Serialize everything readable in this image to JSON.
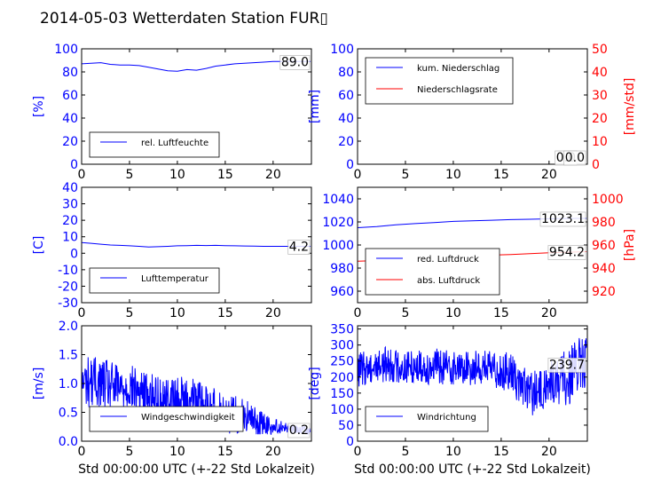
{
  "title": "2014-05-03 Wetterdaten Station FUR▯",
  "colors": {
    "primary": "#0000ff",
    "secondary": "#ff0000",
    "axis": "#000000",
    "frame": "#000000"
  },
  "chart_data": [
    {
      "id": "humidity",
      "type": "line",
      "ylabel": "[%]",
      "ylim": [
        0,
        100
      ],
      "yticks": [
        0,
        20,
        40,
        60,
        80,
        100
      ],
      "xlim": [
        0,
        24
      ],
      "xticks": [
        0,
        5,
        10,
        15,
        20
      ],
      "legend_position": "lower-left",
      "series": [
        {
          "name": "rel. Luftfeuchte",
          "color": "#0000ff",
          "x": [
            0,
            1,
            2,
            3,
            4,
            5,
            6,
            7,
            8,
            9,
            10,
            11,
            12,
            13,
            14,
            15,
            16,
            17,
            18,
            19,
            20,
            21,
            22,
            23,
            23.9
          ],
          "y": [
            87,
            87.5,
            88,
            86.5,
            86,
            86,
            85.5,
            84,
            82.5,
            81,
            80.5,
            82,
            81.5,
            83,
            85,
            86,
            87,
            87.5,
            88,
            88.5,
            89,
            89,
            89,
            89,
            89
          ]
        }
      ],
      "value_labels": [
        {
          "text": "89.0",
          "y": 89.0
        }
      ]
    },
    {
      "id": "precip",
      "type": "line",
      "ylabel": "[mm]",
      "ylabel_right": "[mm/std]",
      "ylim": [
        0,
        100
      ],
      "yticks": [
        0,
        20,
        40,
        60,
        80,
        100
      ],
      "ylim_right": [
        0,
        50
      ],
      "yticks_right": [
        0,
        10,
        20,
        30,
        40,
        50
      ],
      "xlim": [
        0,
        24
      ],
      "xticks": [
        0,
        5,
        10,
        15,
        20
      ],
      "legend_position": "upper-left",
      "series": [
        {
          "name": "kum. Niederschlag",
          "color": "#0000ff",
          "axis": "left",
          "x": [
            0,
            23.9
          ],
          "y": [
            0,
            0
          ]
        },
        {
          "name": "Niederschlagsrate",
          "color": "#ff0000",
          "axis": "right",
          "x": [
            0,
            23.9
          ],
          "y": [
            0,
            0
          ]
        }
      ],
      "value_labels": [
        {
          "text": "0.0",
          "y": 0
        },
        {
          "text": "0.0",
          "y": 0
        }
      ]
    },
    {
      "id": "temperature",
      "type": "line",
      "ylabel": "[C]",
      "ylim": [
        -30,
        40
      ],
      "yticks": [
        -30,
        -20,
        -10,
        0,
        10,
        20,
        30,
        40
      ],
      "xlim": [
        0,
        24
      ],
      "xticks": [
        0,
        5,
        10,
        15,
        20
      ],
      "legend_position": "lower-left",
      "series": [
        {
          "name": "Lufttemperatur",
          "color": "#0000ff",
          "x": [
            0,
            1,
            2,
            3,
            4,
            5,
            6,
            7,
            8,
            9,
            10,
            11,
            12,
            13,
            14,
            15,
            16,
            17,
            18,
            19,
            20,
            21,
            22,
            23,
            23.9
          ],
          "y": [
            6.5,
            6,
            5.5,
            5,
            4.8,
            4.5,
            4.2,
            3.8,
            4,
            4.2,
            4.5,
            4.6,
            4.8,
            4.7,
            4.8,
            4.6,
            4.5,
            4.4,
            4.3,
            4.2,
            4.2,
            4.2,
            4.2,
            4.2,
            4.2
          ]
        }
      ],
      "value_labels": [
        {
          "text": "4.2",
          "y": 4.2
        }
      ]
    },
    {
      "id": "pressure",
      "type": "line",
      "ylabel": "",
      "ylabel_right": "[hPa]",
      "ylim": [
        950,
        1050
      ],
      "yticks": [
        960,
        980,
        1000,
        1020,
        1040
      ],
      "ylim_right": [
        910,
        1010
      ],
      "yticks_right": [
        920,
        940,
        960,
        980,
        1000
      ],
      "xlim": [
        0,
        24
      ],
      "xticks": [
        0,
        5,
        10,
        15,
        20
      ],
      "legend_position": "lower-left",
      "series": [
        {
          "name": "red. Luftdruck",
          "color": "#0000ff",
          "axis": "left",
          "x": [
            0,
            2,
            4,
            6,
            8,
            10,
            12,
            14,
            16,
            18,
            20,
            22,
            23.9
          ],
          "y": [
            1015,
            1016,
            1017.5,
            1018.5,
            1019.5,
            1020.5,
            1021,
            1021.5,
            1022,
            1022.3,
            1022.7,
            1023,
            1023.1
          ]
        },
        {
          "name": "abs. Luftdruck",
          "color": "#ff0000",
          "axis": "right",
          "x": [
            0,
            2,
            4,
            6,
            8,
            10,
            12,
            14,
            16,
            18,
            20,
            22,
            23.9
          ],
          "y": [
            946,
            946.5,
            947.3,
            948.2,
            949,
            950,
            950.6,
            951.2,
            951.8,
            952.5,
            953.2,
            953.8,
            954.2
          ]
        }
      ],
      "value_labels": [
        {
          "text": "1023.1",
          "y": 1023.1,
          "axis": "left"
        },
        {
          "text": "954.2",
          "y": 954.2,
          "axis": "right"
        }
      ]
    },
    {
      "id": "windspeed",
      "type": "line",
      "ylabel": "[m/s]",
      "ylim": [
        0,
        2
      ],
      "yticks": [
        0.0,
        0.5,
        1.0,
        1.5,
        2.0
      ],
      "xlim": [
        0,
        24
      ],
      "xticks": [
        0,
        5,
        10,
        15,
        20
      ],
      "xlabel": "Std 00:00:00 UTC (+-22 Std Lokalzeit)",
      "legend_position": "lower-left",
      "series": [
        {
          "name": "Windgeschwindigkeit",
          "color": "#0000ff",
          "x": [
            0,
            1,
            2,
            3,
            4,
            5,
            6,
            7,
            8,
            9,
            10,
            11,
            12,
            13,
            14,
            15,
            16,
            17,
            18,
            19,
            20,
            21,
            22,
            23,
            23.9
          ],
          "y": [
            1.0,
            1.05,
            1.0,
            0.95,
            0.9,
            0.95,
            0.85,
            0.8,
            0.75,
            0.7,
            0.7,
            0.75,
            0.7,
            0.6,
            0.55,
            0.5,
            0.45,
            0.45,
            0.35,
            0.3,
            0.25,
            0.25,
            0.2,
            0.2,
            0.2
          ],
          "noise_amplitude": [
            0.45,
            0.45,
            0.45,
            0.45,
            0.4,
            0.4,
            0.4,
            0.4,
            0.4,
            0.4,
            0.4,
            0.4,
            0.4,
            0.4,
            0.4,
            0.35,
            0.35,
            0.3,
            0.25,
            0.2,
            0.15,
            0.1,
            0.08,
            0.08,
            0.08
          ]
        }
      ],
      "value_labels": [
        {
          "text": "0.2",
          "y": 0.2
        }
      ]
    },
    {
      "id": "winddir",
      "type": "line",
      "ylabel": "[deg]",
      "ylim": [
        0,
        360
      ],
      "yticks": [
        0,
        50,
        100,
        150,
        200,
        250,
        300,
        350
      ],
      "xlim": [
        0,
        24
      ],
      "xticks": [
        0,
        5,
        10,
        15,
        20
      ],
      "xlabel": "Std 00:00:00 UTC (+-22 Std Lokalzeit)",
      "legend_position": "lower-left",
      "series": [
        {
          "name": "Windrichtung",
          "color": "#0000ff",
          "x": [
            0,
            1,
            2,
            3,
            4,
            5,
            6,
            7,
            8,
            9,
            10,
            11,
            12,
            13,
            14,
            15,
            16,
            17,
            18,
            19,
            20,
            21,
            22,
            23,
            23.9
          ],
          "y": [
            220,
            230,
            235,
            240,
            235,
            230,
            235,
            230,
            235,
            230,
            230,
            225,
            230,
            230,
            225,
            220,
            215,
            180,
            150,
            150,
            180,
            190,
            200,
            230,
            240
          ],
          "noise_amplitude": [
            55,
            55,
            55,
            55,
            55,
            55,
            55,
            55,
            55,
            55,
            55,
            55,
            55,
            55,
            55,
            60,
            60,
            70,
            70,
            70,
            70,
            80,
            90,
            90,
            90
          ]
        }
      ],
      "value_labels": [
        {
          "text": "239.7",
          "y": 239.7
        }
      ]
    }
  ]
}
